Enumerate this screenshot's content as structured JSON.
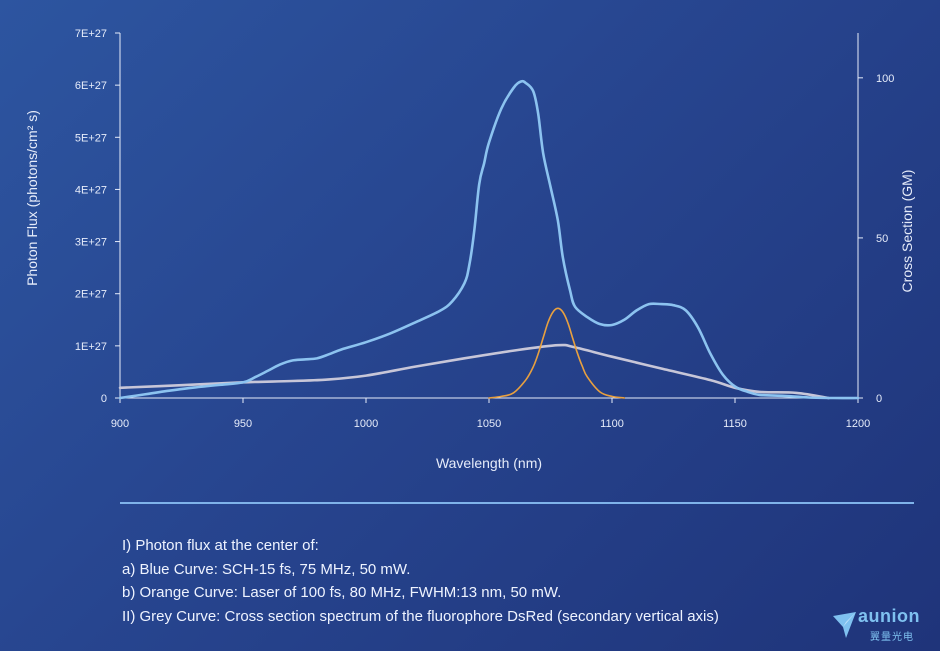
{
  "chart_data": {
    "type": "line",
    "xlabel": "Wavelength (nm)",
    "ylabel": "Photon Flux (photons/cm² s)",
    "y2label": "Cross Section (GM)",
    "xlim": [
      900,
      1200
    ],
    "ylim": [
      0,
      7e+27
    ],
    "y2lim": [
      0,
      114
    ],
    "xticks": [
      "900",
      "950",
      "1000",
      "1050",
      "1100",
      "1150",
      "1200"
    ],
    "yticks": [
      "0",
      "1E+27",
      "2E+27",
      "3E+27",
      "4E+27",
      "5E+27",
      "6E+27",
      "7E+27"
    ],
    "y2ticks": [
      "0",
      "50",
      "100"
    ],
    "grid": false,
    "series": [
      {
        "color": "#8cc3f0",
        "axis": "primary",
        "x": [
          900,
          910,
          920,
          930,
          940,
          950,
          955,
          960,
          965,
          970,
          975,
          980,
          985,
          990,
          1000,
          1010,
          1020,
          1030,
          1035,
          1040,
          1042,
          1044,
          1046,
          1048,
          1050,
          1055,
          1060,
          1063,
          1065,
          1068,
          1070,
          1072,
          1075,
          1078,
          1080,
          1083,
          1085,
          1090,
          1095,
          1100,
          1105,
          1110,
          1115,
          1120,
          1125,
          1130,
          1135,
          1140,
          1145,
          1150,
          1155,
          1160,
          1170,
          1180,
          1190,
          1200
        ],
        "y": [
          0.0,
          7e+25,
          1.4e+26,
          2e+26,
          2.5e+26,
          3e+26,
          4e+26,
          5.2e+26,
          6.4e+26,
          7.2e+26,
          7.4e+26,
          7.6e+26,
          8.4e+26,
          9.3e+26,
          1.07e+27,
          1.24e+27,
          1.45e+27,
          1.67e+27,
          1.85e+27,
          2.2e+27,
          2.55e+27,
          3.2e+27,
          4.1e+27,
          4.5e+27,
          4.9e+27,
          5.55e+27,
          5.95e+27,
          6.07e+27,
          6.04e+27,
          5.88e+27,
          5.45e+27,
          4.7e+27,
          4.05e+27,
          3.4e+27,
          2.7e+27,
          2.05e+27,
          1.75e+27,
          1.55e+27,
          1.42e+27,
          1.4e+27,
          1.5e+27,
          1.68e+27,
          1.8e+27,
          1.8e+27,
          1.78e+27,
          1.68e+27,
          1.35e+27,
          8.5e+26,
          4.5e+26,
          2.2e+26,
          1.2e+26,
          6e+25,
          4e+25,
          1e+25,
          0.0,
          0.0
        ]
      },
      {
        "color": "#e8a03f",
        "axis": "primary",
        "x": [
          1050,
          1055,
          1060,
          1065,
          1068,
          1070,
          1072,
          1074,
          1076,
          1078,
          1080,
          1082,
          1084,
          1086,
          1088,
          1090,
          1095,
          1100,
          1105
        ],
        "y": [
          0.0,
          3e+25,
          1e+26,
          3.5e+26,
          6e+26,
          8.5e+26,
          1.15e+27,
          1.45e+27,
          1.65e+27,
          1.72e+27,
          1.65e+27,
          1.45e+27,
          1.15e+27,
          8.5e+26,
          6e+26,
          4e+26,
          1.2e+26,
          3e+25,
          0.0
        ]
      },
      {
        "color": "#c7c6d8",
        "axis": "secondary",
        "x": [
          900,
          925,
          950,
          970,
          985,
          1000,
          1020,
          1040,
          1060,
          1078,
          1085,
          1100,
          1120,
          1140,
          1150,
          1160,
          1175,
          1188
        ],
        "y": [
          3.2,
          4.0,
          4.9,
          5.3,
          5.8,
          7.0,
          9.8,
          12.4,
          14.8,
          16.5,
          15.8,
          12.9,
          9.2,
          5.6,
          3.2,
          1.9,
          1.6,
          0.0
        ]
      }
    ]
  },
  "notes": {
    "line1": "I) Photon flux at the center of:",
    "line2": "a) Blue Curve: SCH-15 fs, 75 MHz, 50 mW.",
    "line3": "b) Orange Curve: Laser of 100 fs, 80 MHz, FWHM:13 nm, 50 mW.",
    "line4": "II) Grey Curve: Cross section spectrum of the fluorophore DsRed (secondary vertical axis)"
  },
  "logo": {
    "word": "aunion",
    "sub": "翼量光电"
  }
}
